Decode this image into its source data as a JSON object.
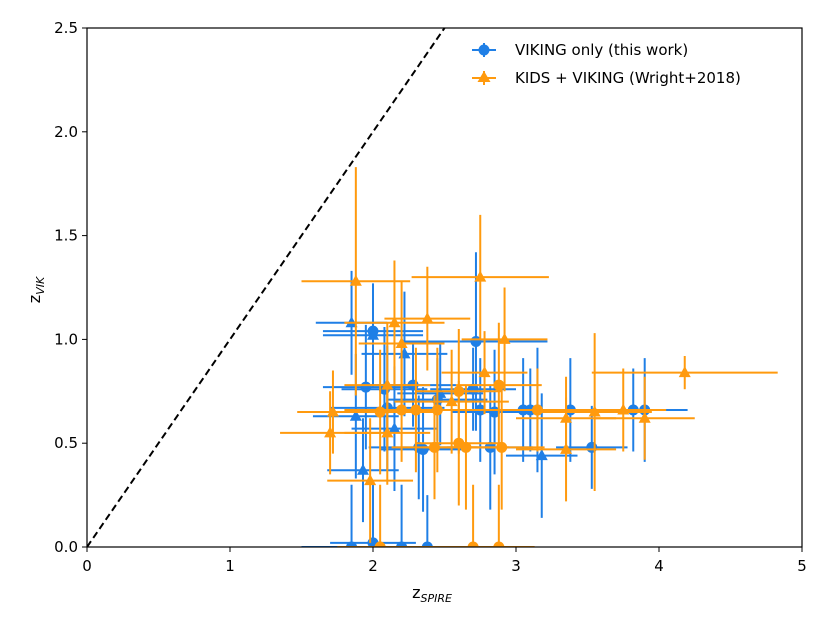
{
  "chart_data": {
    "type": "scatter",
    "xlabel_main": "z",
    "xlabel_sub": "SPIRE",
    "ylabel_main": "z",
    "ylabel_sub": "VIK",
    "xlim": [
      0,
      5
    ],
    "ylim": [
      0,
      2.5
    ],
    "xticks": [
      "0",
      "1",
      "2",
      "3",
      "4",
      "5"
    ],
    "yticks": [
      "0.0",
      "0.5",
      "1.0",
      "1.5",
      "2.0",
      "2.5"
    ],
    "reference_line": {
      "style": "dashed",
      "color": "#000000",
      "x": [
        0,
        2.5
      ],
      "y": [
        0,
        2.5
      ]
    },
    "legend_position": "upper-right",
    "series": [
      {
        "name": "VIKING only (this work)",
        "color": "#1f7fe6",
        "points": [
          {
            "x": 1.85,
            "y": 0.0,
            "xerr": 0.35,
            "yerr": 0.3,
            "marker": "circle"
          },
          {
            "x": 2.2,
            "y": 0.0,
            "xerr": 0.3,
            "yerr": 0.3,
            "marker": "circle"
          },
          {
            "x": 2.38,
            "y": 0.0,
            "xerr": 0.25,
            "yerr": 0.25,
            "marker": "circle"
          },
          {
            "x": 2.0,
            "y": 0.02,
            "xerr": 0.3,
            "yerr": 0.3,
            "marker": "circle"
          },
          {
            "x": 1.85,
            "y": 1.08,
            "xerr": 0.25,
            "yerr": 0.25,
            "marker": "triangle"
          },
          {
            "x": 2.0,
            "y": 1.04,
            "xerr": 0.35,
            "yerr": 0.2,
            "marker": "circle"
          },
          {
            "x": 2.0,
            "y": 1.02,
            "xerr": 0.35,
            "yerr": 0.25,
            "marker": "triangle"
          },
          {
            "x": 2.22,
            "y": 0.93,
            "xerr": 0.3,
            "yerr": 0.3,
            "marker": "triangle"
          },
          {
            "x": 2.72,
            "y": 0.99,
            "xerr": 0.5,
            "yerr": 0.43,
            "marker": "circle"
          },
          {
            "x": 1.95,
            "y": 0.77,
            "xerr": 0.3,
            "yerr": 0.3,
            "marker": "circle"
          },
          {
            "x": 2.08,
            "y": 0.76,
            "xerr": 0.3,
            "yerr": 0.3,
            "marker": "circle"
          },
          {
            "x": 2.1,
            "y": 0.67,
            "xerr": 0.4,
            "yerr": 0.3,
            "marker": "circle"
          },
          {
            "x": 2.28,
            "y": 0.78,
            "xerr": 0.3,
            "yerr": 0.2,
            "marker": "circle"
          },
          {
            "x": 2.47,
            "y": 0.74,
            "xerr": 0.3,
            "yerr": 0.25,
            "marker": "triangle"
          },
          {
            "x": 2.45,
            "y": 0.71,
            "xerr": 0.35,
            "yerr": 0.2,
            "marker": "circle"
          },
          {
            "x": 2.7,
            "y": 0.76,
            "xerr": 0.3,
            "yerr": 0.2,
            "marker": "circle"
          },
          {
            "x": 2.75,
            "y": 0.66,
            "xerr": 0.25,
            "yerr": 0.25,
            "marker": "circle"
          },
          {
            "x": 2.85,
            "y": 0.65,
            "xerr": 0.3,
            "yerr": 0.3,
            "marker": "circle"
          },
          {
            "x": 3.05,
            "y": 0.66,
            "xerr": 0.4,
            "yerr": 0.25,
            "marker": "circle"
          },
          {
            "x": 3.15,
            "y": 0.66,
            "xerr": 0.35,
            "yerr": 0.3,
            "marker": "circle"
          },
          {
            "x": 3.38,
            "y": 0.66,
            "xerr": 0.3,
            "yerr": 0.25,
            "marker": "circle"
          },
          {
            "x": 3.82,
            "y": 0.66,
            "xerr": 0.25,
            "yerr": 0.2,
            "marker": "circle"
          },
          {
            "x": 3.9,
            "y": 0.66,
            "xerr": 0.3,
            "yerr": 0.25,
            "marker": "circle"
          },
          {
            "x": 1.88,
            "y": 0.63,
            "xerr": 0.3,
            "yerr": 0.3,
            "marker": "triangle"
          },
          {
            "x": 1.93,
            "y": 0.37,
            "xerr": 0.25,
            "yerr": 0.25,
            "marker": "triangle"
          },
          {
            "x": 2.32,
            "y": 0.48,
            "xerr": 0.35,
            "yerr": 0.25,
            "marker": "circle"
          },
          {
            "x": 2.35,
            "y": 0.47,
            "xerr": 0.3,
            "yerr": 0.3,
            "marker": "circle"
          },
          {
            "x": 2.82,
            "y": 0.48,
            "xerr": 0.3,
            "yerr": 0.3,
            "marker": "circle"
          },
          {
            "x": 3.18,
            "y": 0.44,
            "xerr": 0.25,
            "yerr": 0.3,
            "marker": "triangle"
          },
          {
            "x": 3.53,
            "y": 0.48,
            "xerr": 0.25,
            "yerr": 0.2,
            "marker": "circle"
          },
          {
            "x": 3.1,
            "y": 0.66,
            "xerr": 0.3,
            "yerr": 0.2,
            "marker": "circle"
          },
          {
            "x": 2.15,
            "y": 0.57,
            "xerr": 0.3,
            "yerr": 0.3,
            "marker": "triangle"
          }
        ]
      },
      {
        "name": "KIDS + VIKING (Wright+2018)",
        "color": "#ff9a0e",
        "points": [
          {
            "x": 1.88,
            "y": 1.28,
            "xerr": 0.38,
            "yerr": 0.55,
            "marker": "triangle"
          },
          {
            "x": 2.75,
            "y": 1.3,
            "xerr": 0.48,
            "yerr": 0.3,
            "marker": "triangle"
          },
          {
            "x": 2.15,
            "y": 1.08,
            "xerr": 0.35,
            "yerr": 0.3,
            "marker": "triangle"
          },
          {
            "x": 2.38,
            "y": 1.1,
            "xerr": 0.3,
            "yerr": 0.25,
            "marker": "triangle"
          },
          {
            "x": 2.2,
            "y": 0.98,
            "xerr": 0.3,
            "yerr": 0.3,
            "marker": "triangle"
          },
          {
            "x": 2.92,
            "y": 1.0,
            "xerr": 0.3,
            "yerr": 0.25,
            "marker": "triangle"
          },
          {
            "x": 4.18,
            "y": 0.84,
            "xerr": 0.65,
            "yerr": 0.08,
            "marker": "triangle"
          },
          {
            "x": 2.78,
            "y": 0.84,
            "xerr": 0.3,
            "yerr": 0.2,
            "marker": "triangle"
          },
          {
            "x": 2.88,
            "y": 0.78,
            "xerr": 0.3,
            "yerr": 0.3,
            "marker": "circle"
          },
          {
            "x": 2.1,
            "y": 0.78,
            "xerr": 0.3,
            "yerr": 0.3,
            "marker": "triangle"
          },
          {
            "x": 2.55,
            "y": 0.7,
            "xerr": 0.4,
            "yerr": 0.25,
            "marker": "triangle"
          },
          {
            "x": 2.6,
            "y": 0.75,
            "xerr": 0.3,
            "yerr": 0.3,
            "marker": "circle"
          },
          {
            "x": 2.45,
            "y": 0.66,
            "xerr": 0.5,
            "yerr": 0.3,
            "marker": "circle"
          },
          {
            "x": 2.3,
            "y": 0.66,
            "xerr": 0.45,
            "yerr": 0.3,
            "marker": "circle"
          },
          {
            "x": 2.2,
            "y": 0.66,
            "xerr": 0.4,
            "yerr": 0.25,
            "marker": "circle"
          },
          {
            "x": 2.05,
            "y": 0.65,
            "xerr": 0.4,
            "yerr": 0.3,
            "marker": "circle"
          },
          {
            "x": 1.72,
            "y": 0.65,
            "xerr": 0.25,
            "yerr": 0.2,
            "marker": "triangle"
          },
          {
            "x": 1.7,
            "y": 0.55,
            "xerr": 0.35,
            "yerr": 0.2,
            "marker": "triangle"
          },
          {
            "x": 2.1,
            "y": 0.55,
            "xerr": 0.3,
            "yerr": 0.25,
            "marker": "triangle"
          },
          {
            "x": 1.98,
            "y": 0.32,
            "xerr": 0.3,
            "yerr": 0.3,
            "marker": "triangle"
          },
          {
            "x": 3.55,
            "y": 0.65,
            "xerr": 0.4,
            "yerr": 0.38,
            "marker": "triangle"
          },
          {
            "x": 3.75,
            "y": 0.66,
            "xerr": 0.3,
            "yerr": 0.2,
            "marker": "triangle"
          },
          {
            "x": 3.9,
            "y": 0.62,
            "xerr": 0.35,
            "yerr": 0.2,
            "marker": "triangle"
          },
          {
            "x": 3.35,
            "y": 0.62,
            "xerr": 0.35,
            "yerr": 0.2,
            "marker": "triangle"
          },
          {
            "x": 3.15,
            "y": 0.66,
            "xerr": 0.35,
            "yerr": 0.2,
            "marker": "circle"
          },
          {
            "x": 2.9,
            "y": 0.48,
            "xerr": 0.3,
            "yerr": 0.3,
            "marker": "circle"
          },
          {
            "x": 2.6,
            "y": 0.5,
            "xerr": 0.3,
            "yerr": 0.3,
            "marker": "circle"
          },
          {
            "x": 3.35,
            "y": 0.47,
            "xerr": 0.35,
            "yerr": 0.25,
            "marker": "triangle"
          },
          {
            "x": 2.7,
            "y": 0.0,
            "xerr": 0.35,
            "yerr": 0.3,
            "marker": "circle"
          },
          {
            "x": 2.88,
            "y": 0.0,
            "xerr": 0.25,
            "yerr": 0.3,
            "marker": "circle"
          },
          {
            "x": 2.05,
            "y": 0.0,
            "xerr": 0.3,
            "yerr": 0.3,
            "marker": "circle"
          },
          {
            "x": 2.43,
            "y": 0.48,
            "xerr": 0.3,
            "yerr": 0.25,
            "marker": "circle"
          },
          {
            "x": 2.65,
            "y": 0.48,
            "xerr": 0.3,
            "yerr": 0.3,
            "marker": "circle"
          }
        ]
      }
    ]
  }
}
